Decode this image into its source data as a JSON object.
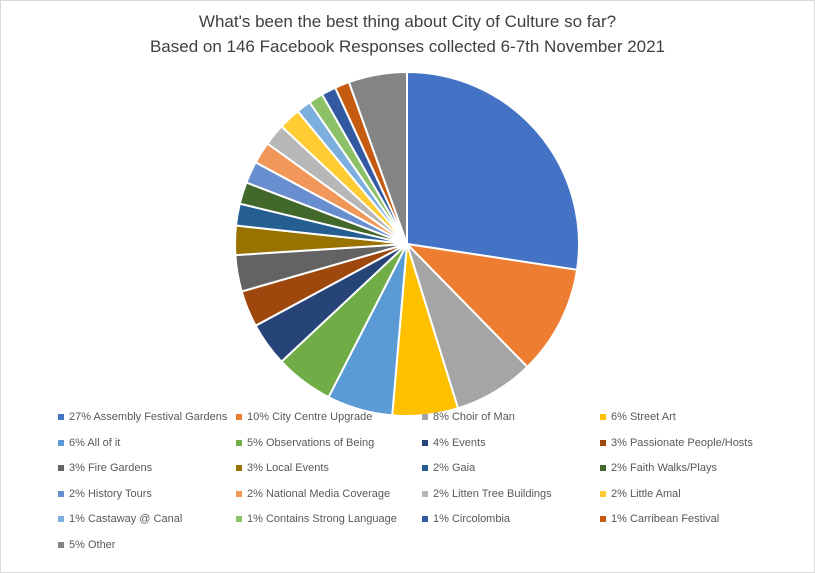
{
  "chart_data": {
    "type": "pie",
    "title": "What's been the best thing about City of Culture so far?",
    "subtitle": "Based on 146 Facebook Responses collected 6-7th November 2021",
    "legend_position": "bottom",
    "slices": [
      {
        "label": "27% Assembly Festival Gardens",
        "value": 40,
        "color": "#4472C4"
      },
      {
        "label": "10% City Centre Upgrade",
        "value": 15,
        "color": "#ED7D31"
      },
      {
        "label": "8% Choir of Man",
        "value": 11,
        "color": "#A5A5A5"
      },
      {
        "label": "6% Street Art",
        "value": 9,
        "color": "#FFC000"
      },
      {
        "label": "6% All of it",
        "value": 9,
        "color": "#5B9BD5"
      },
      {
        "label": "5% Observations of Being",
        "value": 8,
        "color": "#70AD47"
      },
      {
        "label": "4% Events",
        "value": 6,
        "color": "#264478"
      },
      {
        "label": "3% Passionate People/Hosts",
        "value": 5,
        "color": "#9E480E"
      },
      {
        "label": "3% Fire Gardens",
        "value": 5,
        "color": "#636363"
      },
      {
        "label": "3% Local Events",
        "value": 4,
        "color": "#997300"
      },
      {
        "label": "2% Gaia",
        "value": 3,
        "color": "#255E91"
      },
      {
        "label": "2% Faith Walks/Plays",
        "value": 3,
        "color": "#43682B"
      },
      {
        "label": "2% History Tours",
        "value": 3,
        "color": "#698ED0"
      },
      {
        "label": "2% National Media Coverage",
        "value": 3,
        "color": "#F1975A"
      },
      {
        "label": "2% Litten Tree Buildings",
        "value": 3,
        "color": "#B7B7B7"
      },
      {
        "label": "2% Little Amal",
        "value": 3,
        "color": "#FFCD33"
      },
      {
        "label": "1% Castaway @ Canal",
        "value": 2,
        "color": "#7CAFDD"
      },
      {
        "label": "1% Contains Strong Language",
        "value": 2,
        "color": "#8CC168"
      },
      {
        "label": "1% Circolombia",
        "value": 2,
        "color": "#335AA1"
      },
      {
        "label": "1% Carribean Festival",
        "value": 2,
        "color": "#C55A11"
      },
      {
        "label": "5% Other",
        "value": 8,
        "color": "#848484"
      }
    ]
  }
}
